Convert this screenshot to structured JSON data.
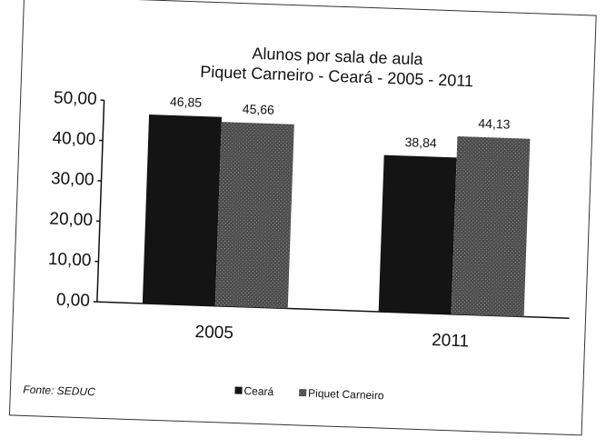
{
  "chart_data": {
    "type": "bar",
    "title": "Alunos por sala de aula",
    "subtitle": "Piquet Carneiro - Ceará - 2005 - 2011",
    "categories": [
      "2005",
      "2011"
    ],
    "series": [
      {
        "name": "Ceará",
        "color": "#141414",
        "values": [
          46.85,
          38.84
        ],
        "value_labels": [
          "46,85",
          "38,84"
        ]
      },
      {
        "name": "Piquet Carneiro",
        "color": "#5a5a5a",
        "values": [
          45.66,
          44.13
        ],
        "value_labels": [
          "45,66",
          "44,13"
        ]
      }
    ],
    "ylim": [
      0,
      50
    ],
    "yticks": [
      {
        "value": 0,
        "label": "0,00"
      },
      {
        "value": 10,
        "label": "10,00"
      },
      {
        "value": 20,
        "label": "20,00"
      },
      {
        "value": 30,
        "label": "30,00"
      },
      {
        "value": 40,
        "label": "40,00"
      },
      {
        "value": 50,
        "label": "50,00"
      }
    ],
    "grid": false,
    "legend": "bottom",
    "source": "Fonte: SEDUC"
  }
}
